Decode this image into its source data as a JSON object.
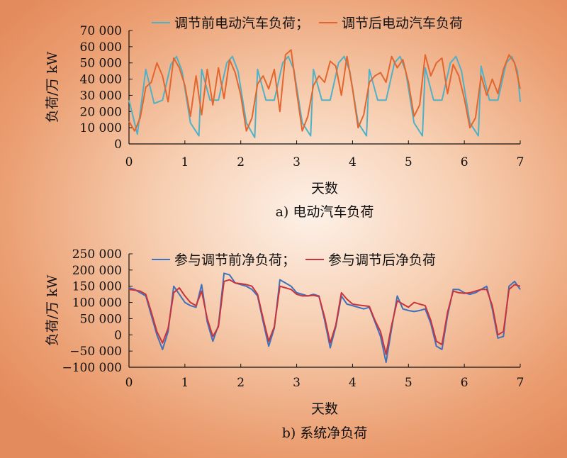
{
  "chart_data": [
    {
      "type": "line",
      "caption": "a) 电动汽车负荷",
      "xlabel": "天数",
      "ylabel": "负荷/万 kW",
      "xlim": [
        0,
        7
      ],
      "ylim": [
        0,
        70000
      ],
      "x_ticks": [
        0,
        1,
        2,
        3,
        4,
        5,
        6,
        7
      ],
      "y_ticks": [
        0,
        10000,
        20000,
        30000,
        40000,
        50000,
        60000,
        70000
      ],
      "y_tick_labels": [
        "0",
        "10 000",
        "20 000",
        "30 000",
        "40 000",
        "50 000",
        "60 000",
        "70 000"
      ],
      "legend": "top",
      "legend_separators": [
        "；",
        ""
      ],
      "series": [
        {
          "name": "调节前电动汽车负荷",
          "color": "#4fb1c7",
          "x": [
            0,
            0.15,
            0.3,
            0.45,
            0.6,
            0.75,
            0.85,
            0.95,
            1.1,
            1.25,
            1.3,
            1.45,
            1.6,
            1.75,
            1.85,
            1.95,
            2.1,
            2.25,
            2.3,
            2.45,
            2.6,
            2.75,
            2.85,
            2.95,
            3.1,
            3.25,
            3.3,
            3.45,
            3.6,
            3.75,
            3.85,
            3.95,
            4.1,
            4.25,
            4.3,
            4.45,
            4.6,
            4.75,
            4.85,
            4.95,
            5.1,
            5.25,
            5.3,
            5.45,
            5.6,
            5.75,
            5.85,
            5.95,
            6.1,
            6.25,
            6.3,
            6.45,
            6.6,
            6.75,
            6.85,
            6.95,
            7.0
          ],
          "y": [
            27000,
            6000,
            46000,
            25000,
            27000,
            49000,
            54000,
            45000,
            13000,
            5000,
            46000,
            27000,
            27000,
            50000,
            54000,
            45000,
            13000,
            4000,
            46000,
            27000,
            27000,
            50000,
            54000,
            46000,
            13000,
            5000,
            46000,
            27000,
            27000,
            50000,
            54000,
            45000,
            13000,
            5000,
            46000,
            27000,
            27000,
            50000,
            54000,
            45000,
            13000,
            5000,
            47000,
            27000,
            27000,
            50000,
            54000,
            45000,
            13000,
            5000,
            48000,
            27000,
            27000,
            50000,
            54000,
            45000,
            26000
          ]
        },
        {
          "name": "调节后电动汽车负荷",
          "color": "#e2662e",
          "x": [
            0,
            0.1,
            0.2,
            0.3,
            0.4,
            0.5,
            0.6,
            0.7,
            0.8,
            0.9,
            1.0,
            1.1,
            1.2,
            1.3,
            1.4,
            1.5,
            1.6,
            1.7,
            1.8,
            1.9,
            2.0,
            2.1,
            2.2,
            2.3,
            2.4,
            2.5,
            2.6,
            2.7,
            2.8,
            2.9,
            3.0,
            3.1,
            3.2,
            3.3,
            3.4,
            3.5,
            3.6,
            3.7,
            3.8,
            3.9,
            4.0,
            4.1,
            4.2,
            4.3,
            4.4,
            4.5,
            4.6,
            4.7,
            4.8,
            4.9,
            5.0,
            5.1,
            5.2,
            5.3,
            5.4,
            5.5,
            5.6,
            5.7,
            5.8,
            5.9,
            6.0,
            6.1,
            6.2,
            6.3,
            6.4,
            6.5,
            6.6,
            6.7,
            6.8,
            6.9,
            7.0
          ],
          "y": [
            14000,
            8000,
            16000,
            35000,
            38000,
            50000,
            42000,
            26000,
            53000,
            47000,
            36000,
            17000,
            42000,
            18000,
            46000,
            24000,
            47000,
            28000,
            52000,
            44000,
            30000,
            8000,
            16000,
            37000,
            42000,
            34000,
            46000,
            20000,
            55000,
            58000,
            32000,
            8000,
            17000,
            36000,
            42000,
            38000,
            51000,
            48000,
            30000,
            54000,
            34000,
            10000,
            18000,
            38000,
            42000,
            44000,
            38000,
            54000,
            47000,
            52000,
            38000,
            17000,
            24000,
            55000,
            42000,
            50000,
            53000,
            31000,
            49000,
            42000,
            28000,
            10000,
            16000,
            42000,
            30000,
            40000,
            31000,
            46000,
            55000,
            50000,
            34000
          ]
        }
      ]
    },
    {
      "type": "line",
      "caption": "b) 系统净负荷",
      "xlabel": "天数",
      "ylabel": "负荷/万 kW",
      "xlim": [
        0,
        7
      ],
      "ylim": [
        -100000,
        250000
      ],
      "x_ticks": [
        0,
        1,
        2,
        3,
        4,
        5,
        6,
        7
      ],
      "y_ticks": [
        -100000,
        -50000,
        0,
        50000,
        100000,
        150000,
        200000,
        250000
      ],
      "y_tick_labels": [
        "−100 000",
        "−50 000",
        "0",
        "50 000",
        "100 000",
        "150 000",
        "200 000",
        "250 000"
      ],
      "legend": "top",
      "legend_separators": [
        "；",
        ""
      ],
      "series": [
        {
          "name": "参与调节前净负荷",
          "color": "#3f71bc",
          "x": [
            0,
            0.1,
            0.2,
            0.3,
            0.4,
            0.5,
            0.6,
            0.7,
            0.8,
            0.9,
            1.0,
            1.1,
            1.2,
            1.3,
            1.4,
            1.5,
            1.6,
            1.7,
            1.8,
            1.9,
            2.0,
            2.1,
            2.2,
            2.3,
            2.4,
            2.5,
            2.6,
            2.7,
            2.8,
            2.9,
            3.0,
            3.1,
            3.2,
            3.3,
            3.4,
            3.5,
            3.6,
            3.7,
            3.8,
            3.9,
            4.0,
            4.1,
            4.2,
            4.3,
            4.4,
            4.5,
            4.6,
            4.7,
            4.8,
            4.9,
            5.0,
            5.1,
            5.2,
            5.3,
            5.4,
            5.5,
            5.6,
            5.7,
            5.8,
            5.9,
            6.0,
            6.1,
            6.2,
            6.3,
            6.4,
            6.5,
            6.6,
            6.7,
            6.8,
            6.9,
            7.0
          ],
          "y": [
            145000,
            140000,
            130000,
            120000,
            60000,
            0,
            -45000,
            10000,
            150000,
            125000,
            100000,
            90000,
            85000,
            155000,
            40000,
            -20000,
            30000,
            190000,
            185000,
            160000,
            155000,
            150000,
            140000,
            120000,
            40000,
            -35000,
            20000,
            170000,
            160000,
            150000,
            130000,
            125000,
            120000,
            125000,
            120000,
            45000,
            -40000,
            25000,
            120000,
            95000,
            90000,
            85000,
            80000,
            85000,
            40000,
            -5000,
            -85000,
            20000,
            120000,
            80000,
            75000,
            72000,
            75000,
            80000,
            35000,
            -35000,
            -45000,
            60000,
            140000,
            140000,
            130000,
            125000,
            130000,
            140000,
            150000,
            80000,
            -10000,
            -5000,
            150000,
            165000,
            140000
          ]
        },
        {
          "name": "参与调节后净负荷",
          "color": "#c8343d",
          "x": [
            0,
            0.1,
            0.2,
            0.3,
            0.4,
            0.5,
            0.6,
            0.7,
            0.8,
            0.9,
            1.0,
            1.1,
            1.2,
            1.3,
            1.4,
            1.5,
            1.6,
            1.7,
            1.8,
            1.9,
            2.0,
            2.1,
            2.2,
            2.3,
            2.4,
            2.5,
            2.6,
            2.7,
            2.8,
            2.9,
            3.0,
            3.1,
            3.2,
            3.3,
            3.4,
            3.5,
            3.6,
            3.7,
            3.8,
            3.9,
            4.0,
            4.1,
            4.2,
            4.3,
            4.4,
            4.5,
            4.6,
            4.7,
            4.8,
            4.9,
            5.0,
            5.1,
            5.2,
            5.3,
            5.4,
            5.5,
            5.6,
            5.7,
            5.8,
            5.9,
            6.0,
            6.1,
            6.2,
            6.3,
            6.4,
            6.5,
            6.6,
            6.7,
            6.8,
            6.9,
            7.0
          ],
          "y": [
            140000,
            138000,
            135000,
            125000,
            70000,
            10000,
            -25000,
            20000,
            130000,
            145000,
            120000,
            100000,
            90000,
            135000,
            50000,
            -5000,
            25000,
            165000,
            170000,
            160000,
            158000,
            155000,
            150000,
            125000,
            50000,
            -20000,
            25000,
            150000,
            145000,
            140000,
            125000,
            120000,
            120000,
            122000,
            118000,
            55000,
            -25000,
            30000,
            130000,
            110000,
            95000,
            92000,
            90000,
            88000,
            45000,
            10000,
            -60000,
            30000,
            105000,
            95000,
            85000,
            100000,
            95000,
            90000,
            45000,
            -20000,
            -30000,
            70000,
            135000,
            130000,
            128000,
            130000,
            135000,
            140000,
            140000,
            90000,
            0,
            10000,
            140000,
            155000,
            150000
          ]
        }
      ]
    }
  ]
}
